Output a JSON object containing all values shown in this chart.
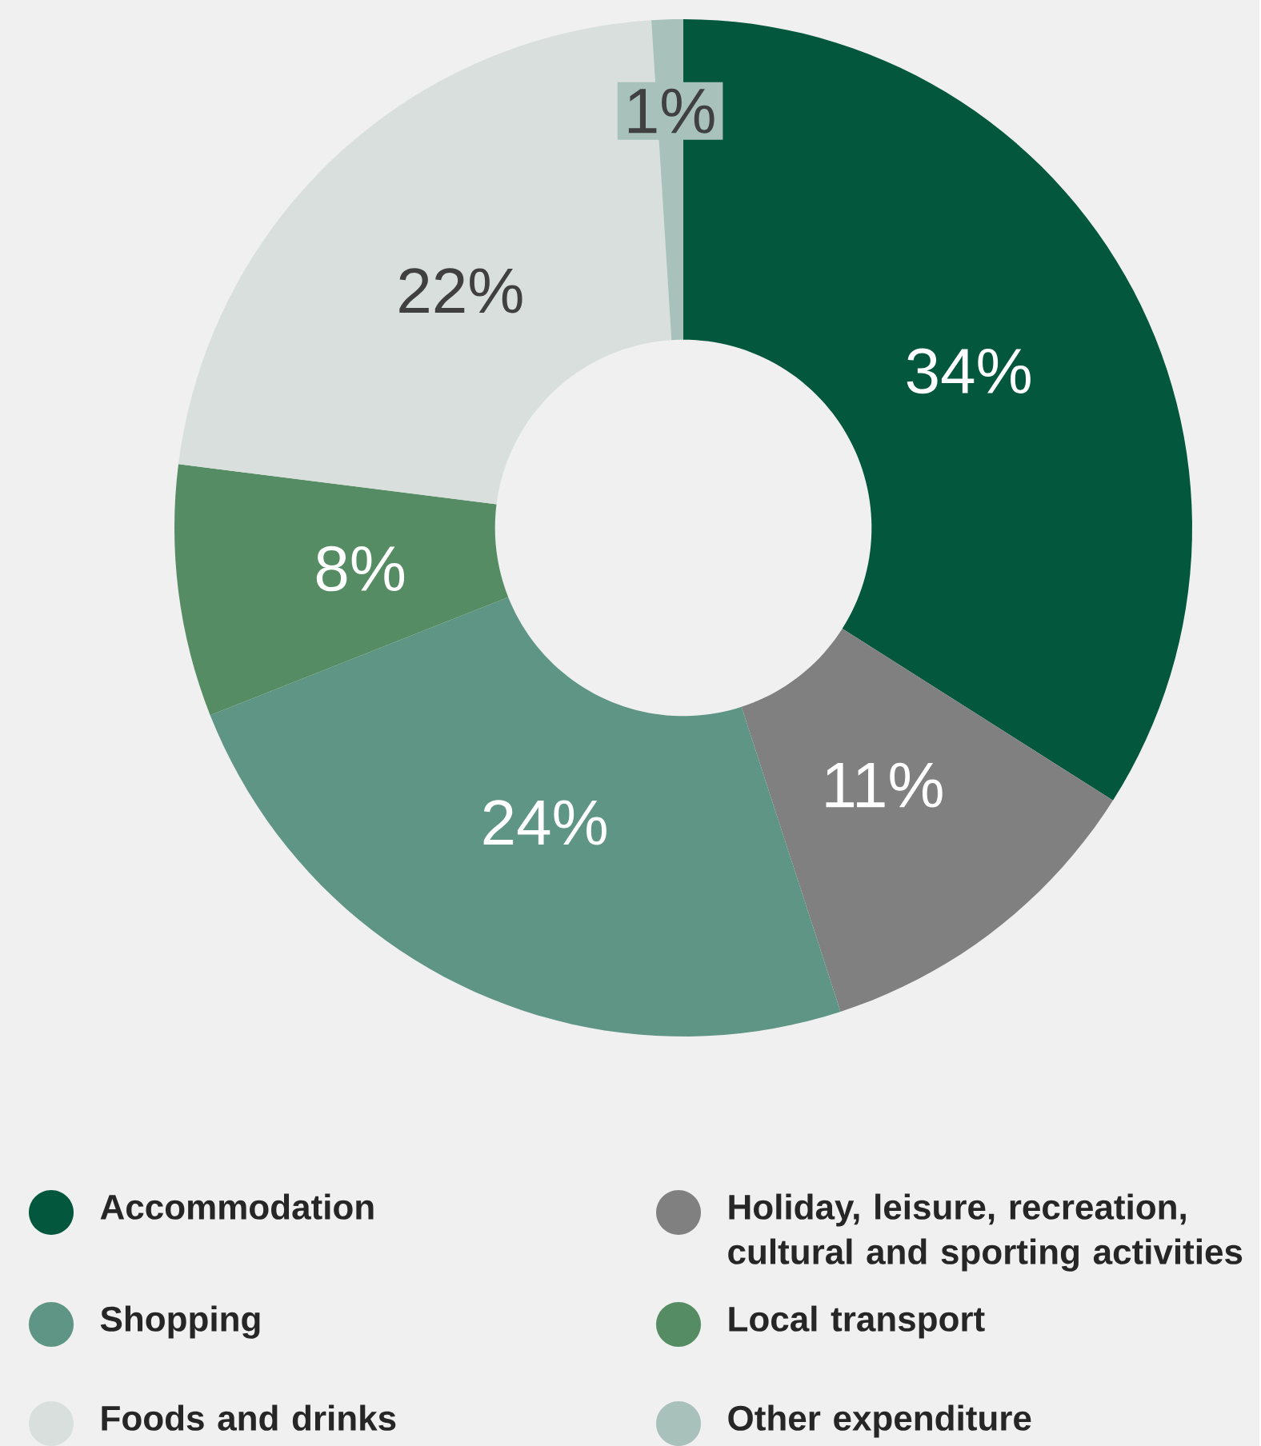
{
  "chart_data": {
    "type": "donut",
    "categories": [
      "Accommodation",
      "Holiday, leisure, recreation, cultural and sporting activities",
      "Shopping",
      "Local transport",
      "Foods and drinks",
      "Other expenditure"
    ],
    "values": [
      34,
      11,
      24,
      8,
      22,
      1
    ],
    "colors": [
      "#03573c",
      "#808080",
      "#5f9584",
      "#558c63",
      "#d8dfdd",
      "#a8c1ba"
    ],
    "value_labels": [
      "34%",
      "11%",
      "24%",
      "8%",
      "22%",
      "1%"
    ],
    "legend": "bottom"
  }
}
